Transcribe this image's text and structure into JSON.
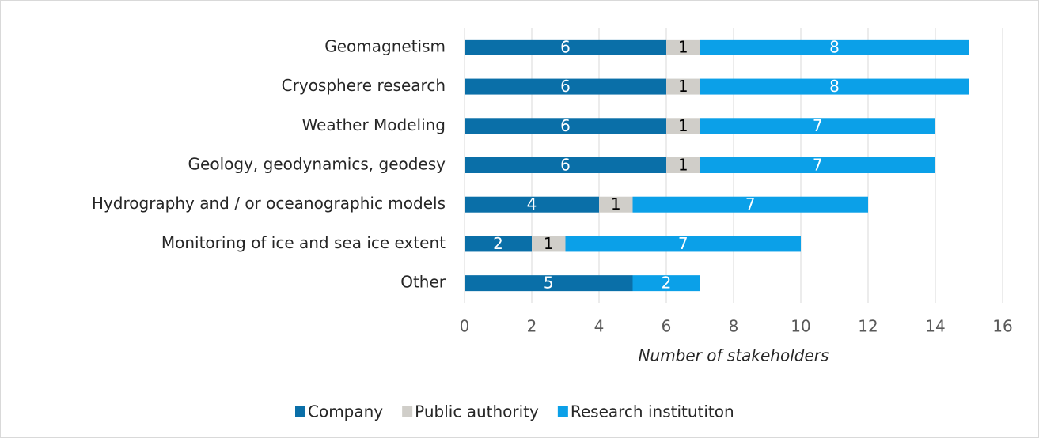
{
  "chart_data": {
    "type": "stacked_bar_horizontal",
    "categories": [
      "Geomagnetism",
      "Cryosphere research",
      "Weather Modeling",
      "Geology, geodynamics, geodesy",
      "Hydrography and / or oceanographic models",
      "Monitoring of ice and sea ice extent",
      "Other"
    ],
    "series": [
      {
        "name": "Company",
        "color": "#0a6fa8",
        "label_color": "#ffffff",
        "values": [
          6,
          6,
          6,
          6,
          4,
          2,
          5
        ]
      },
      {
        "name": "Public authority",
        "color": "#d0cec9",
        "label_color": "#000000",
        "values": [
          1,
          1,
          1,
          1,
          1,
          1,
          null
        ]
      },
      {
        "name": "Research institutiton",
        "color": "#0ba0e8",
        "label_color": "#ffffff",
        "values": [
          8,
          8,
          7,
          7,
          7,
          7,
          2
        ]
      }
    ],
    "x_label": "Number of stakeholders",
    "xlim": [
      0,
      16
    ],
    "xticks": [
      0,
      2,
      4,
      6,
      8,
      10,
      12,
      14,
      16
    ],
    "grid": true,
    "legend": "bottom"
  }
}
